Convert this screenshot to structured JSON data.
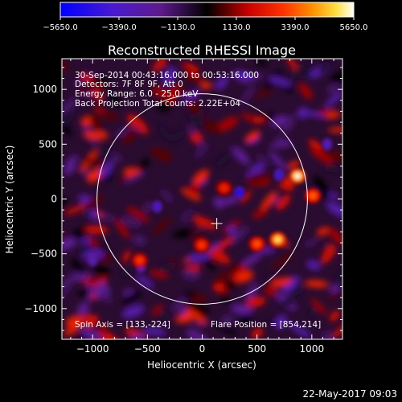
{
  "colorbar": {
    "tick_labels": [
      "−5650.0",
      "−3390.0",
      "−1130.0",
      "1130.0",
      "3390.0",
      "5650.0"
    ],
    "range": [
      -5650.0,
      5650.0
    ],
    "colormap": "blue-purple-black-red-orange-yellow-white"
  },
  "title": "Reconstructed RHESSI Image",
  "annotations": {
    "time_range": "30-Sep-2014 00:43:16.000 to 00:53:16.000",
    "detectors": "Detectors: 7F 8F 9F, Att 0",
    "energy_range": "Energy Range: 6.0 - 25.0 keV",
    "method": "Back Projection   Total counts: 2.22E+04",
    "spin_axis": "Spin Axis = [133,-224]",
    "flare_position": "Flare Position = [854,214]"
  },
  "footer": {
    "date": "22-May-2017 09:03"
  },
  "chart_data": {
    "type": "heatmap",
    "title": "Reconstructed RHESSI Image",
    "xlabel": "Heliocentric X (arcsec)",
    "ylabel": "Heliocentric Y (arcsec)",
    "xlim": [
      -1280,
      1280
    ],
    "ylim": [
      -1280,
      1280
    ],
    "x_ticks": [
      {
        "value": -1000,
        "label": "−1000"
      },
      {
        "value": -500,
        "label": "−500"
      },
      {
        "value": 0,
        "label": "0"
      },
      {
        "value": 500,
        "label": "500"
      },
      {
        "value": 1000,
        "label": "1000"
      }
    ],
    "y_ticks": [
      {
        "value": 1000,
        "label": "1000"
      },
      {
        "value": 500,
        "label": "500"
      },
      {
        "value": 0,
        "label": "0"
      },
      {
        "value": -500,
        "label": "−500"
      },
      {
        "value": -1000,
        "label": "−1000"
      }
    ],
    "solar_limb_radius_arcsec": 960,
    "spin_axis": [
      133,
      -224
    ],
    "bright_sources": [
      {
        "x": 870,
        "y": 210,
        "intensity": 5650
      },
      {
        "x": 690,
        "y": -370,
        "intensity": 5200
      },
      {
        "x": 1010,
        "y": 30,
        "intensity": 3600
      },
      {
        "x": 500,
        "y": -410,
        "intensity": 3400
      },
      {
        "x": -5,
        "y": -420,
        "intensity": 3000
      },
      {
        "x": -570,
        "y": -560,
        "intensity": 3000
      },
      {
        "x": 200,
        "y": 100,
        "intensity": 2600
      }
    ],
    "dark_sources": [
      {
        "x": 340,
        "y": 60,
        "intensity": -5200
      },
      {
        "x": 700,
        "y": 220,
        "intensity": -4200
      },
      {
        "x": 1140,
        "y": 500,
        "intensity": -3600
      },
      {
        "x": -410,
        "y": -70,
        "intensity": -3800
      },
      {
        "x": -560,
        "y": -620,
        "intensity": -3400
      },
      {
        "x": -1000,
        "y": -560,
        "intensity": -3000
      }
    ],
    "grid": false
  }
}
